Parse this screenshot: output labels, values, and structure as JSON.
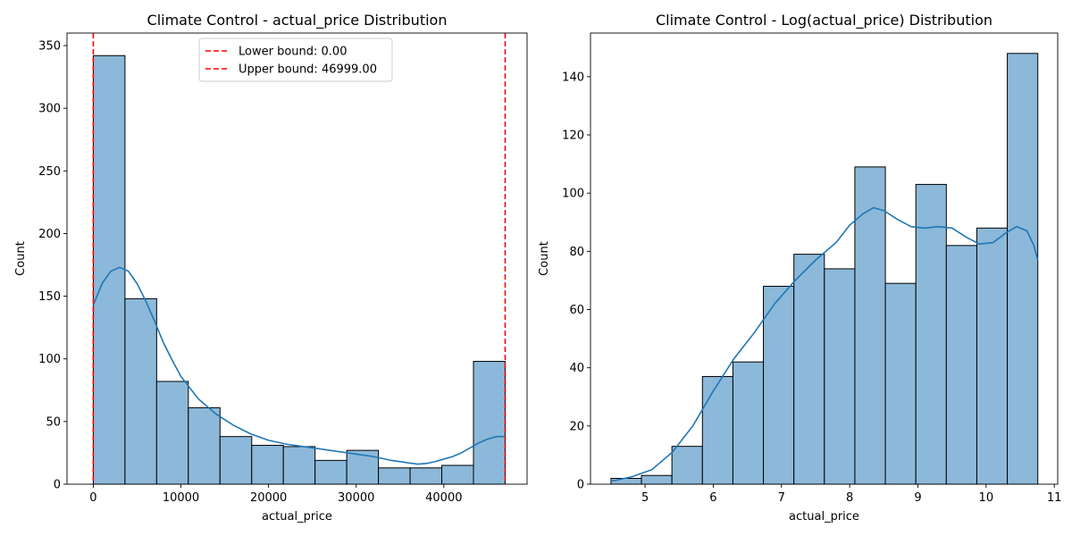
{
  "chart_data": [
    {
      "type": "histogram",
      "title": "Climate Control - actual_price Distribution",
      "xlabel": "actual_price",
      "ylabel": "Count",
      "xlim": [
        -3000,
        49500
      ],
      "ylim": [
        0,
        360
      ],
      "xticks": [
        0,
        10000,
        20000,
        30000,
        40000
      ],
      "xtick_labels": [
        "0",
        "10000",
        "20000",
        "30000",
        "40000"
      ],
      "yticks": [
        0,
        50,
        100,
        150,
        200,
        250,
        300,
        350
      ],
      "ytick_labels": [
        "0",
        "50",
        "100",
        "150",
        "200",
        "250",
        "300",
        "350"
      ],
      "bin_edges": [
        0,
        3615.3,
        7230.6,
        10845.9,
        14461.2,
        18076.5,
        21691.8,
        25307.1,
        28922.4,
        32537.7,
        36153.0,
        39768.3,
        43383.6,
        46999
      ],
      "counts": [
        342,
        148,
        82,
        61,
        38,
        31,
        30,
        19,
        27,
        13,
        13,
        15,
        98
      ],
      "kde": {
        "x": [
          0,
          1000,
          2000,
          3000,
          4000,
          5000,
          6000,
          7000,
          8000,
          9000,
          10000,
          12000,
          14000,
          16000,
          18000,
          20000,
          22000,
          24000,
          26000,
          28000,
          30000,
          32000,
          34000,
          36000,
          37000,
          38000,
          39000,
          40000,
          41000,
          42000,
          43000,
          44000,
          45000,
          46000,
          46999
        ],
        "y": [
          143,
          160,
          170,
          173,
          170,
          160,
          146,
          130,
          113,
          99,
          86,
          68,
          56,
          47,
          40,
          35,
          32,
          30,
          28,
          26,
          24,
          22,
          19,
          17,
          16,
          16.5,
          18,
          20,
          22,
          25,
          29,
          33,
          36,
          38,
          38
        ]
      },
      "lines": [
        {
          "value": 0,
          "label": "Lower bound: 0.00",
          "color": "#ff0000"
        },
        {
          "value": 46999,
          "label": "Upper bound: 46999.00",
          "color": "#ff0000"
        }
      ],
      "legend_position": "top-center",
      "bar_color": "#8cb9d9",
      "kde_color": "#1f77b4"
    },
    {
      "type": "histogram",
      "title": "Climate Control - Log(actual_price) Distribution",
      "xlabel": "actual_price",
      "ylabel": "Count",
      "xlim": [
        4.2,
        11.05
      ],
      "ylim": [
        0,
        155
      ],
      "xticks": [
        5,
        6,
        7,
        8,
        9,
        10,
        11
      ],
      "xtick_labels": [
        "5",
        "6",
        "7",
        "8",
        "9",
        "10",
        "11"
      ],
      "yticks": [
        0,
        20,
        40,
        60,
        80,
        100,
        120,
        140
      ],
      "ytick_labels": [
        "0",
        "20",
        "40",
        "60",
        "80",
        "100",
        "120",
        "140"
      ],
      "bin_edges": [
        4.5,
        4.947,
        5.394,
        5.841,
        6.288,
        6.735,
        7.182,
        7.629,
        8.076,
        8.523,
        8.97,
        9.417,
        9.864,
        10.311,
        10.758
      ],
      "counts": [
        2,
        3,
        13,
        37,
        42,
        68,
        79,
        74,
        109,
        69,
        103,
        82,
        88,
        148
      ],
      "kde": {
        "x": [
          4.5,
          4.8,
          5.1,
          5.4,
          5.7,
          6.0,
          6.3,
          6.6,
          6.9,
          7.2,
          7.5,
          7.8,
          8.0,
          8.2,
          8.35,
          8.5,
          8.7,
          8.9,
          9.1,
          9.3,
          9.5,
          9.7,
          9.9,
          10.1,
          10.3,
          10.45,
          10.6,
          10.7,
          10.758
        ],
        "y": [
          1,
          2.5,
          5,
          11,
          20,
          32,
          43,
          52,
          62,
          70,
          77,
          83,
          89,
          93,
          95,
          94,
          91,
          88.5,
          88,
          88.5,
          88,
          85,
          82.5,
          83,
          86.5,
          88.5,
          87,
          82,
          77
        ]
      },
      "bar_color": "#8cb9d9",
      "kde_color": "#1f77b4"
    }
  ]
}
